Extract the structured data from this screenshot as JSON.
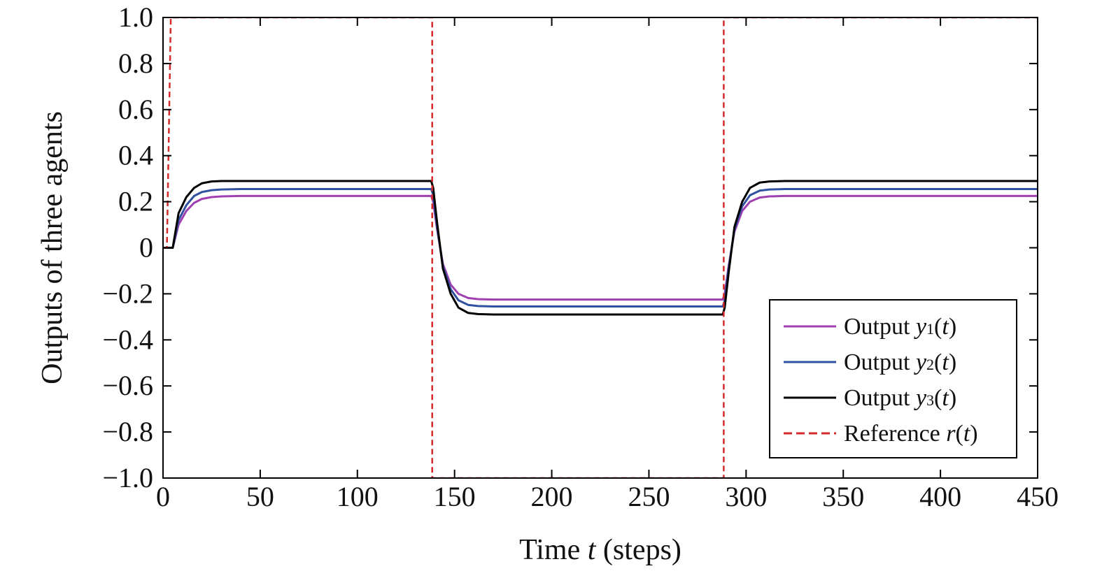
{
  "chart_data": {
    "type": "line",
    "xlabel_prefix": "Time ",
    "xlabel_var": "t",
    "xlabel_suffix": " (steps)",
    "ylabel": "Outputs of three agents",
    "xlim": [
      0,
      450
    ],
    "ylim": [
      -1.0,
      1.0
    ],
    "x_ticks": [
      0,
      50,
      100,
      150,
      200,
      250,
      300,
      350,
      400,
      450
    ],
    "x_tick_labels": [
      "0",
      "50",
      "100",
      "150",
      "200",
      "250",
      "300",
      "350",
      "400",
      "450"
    ],
    "y_ticks": [
      -1.0,
      -0.8,
      -0.6,
      -0.4,
      -0.2,
      0,
      0.2,
      0.4,
      0.6,
      0.8,
      1.0
    ],
    "y_tick_labels": [
      "−1.0",
      "−0.8",
      "−0.6",
      "−0.4",
      "−0.2",
      "0",
      "0.2",
      "0.4",
      "0.6",
      "0.8",
      "1.0"
    ],
    "grid": false,
    "legend_position": "bottom-right",
    "legend": [
      {
        "prefix": "Output ",
        "var": "y",
        "sub": "1",
        "arg": "(t)"
      },
      {
        "prefix": "Output ",
        "var": "y",
        "sub": "2",
        "arg": "(t)"
      },
      {
        "prefix": "Output ",
        "var": "y",
        "sub": "3",
        "arg": "(t)"
      },
      {
        "prefix": "Reference ",
        "var": "r",
        "sub": "",
        "arg": "(t)"
      }
    ],
    "series": [
      {
        "color": "#a040b0",
        "dashed": false,
        "x": [
          0,
          3,
          5,
          8,
          12,
          16,
          20,
          25,
          30,
          40,
          60,
          100,
          138,
          139,
          141,
          144,
          148,
          152,
          157,
          162,
          170,
          180,
          200,
          250,
          288,
          289,
          291,
          294,
          298,
          302,
          307,
          312,
          320,
          340,
          400,
          450
        ],
        "y": [
          0,
          0,
          0,
          0.1,
          0.16,
          0.195,
          0.212,
          0.22,
          0.223,
          0.225,
          0.225,
          0.225,
          0.225,
          0.2,
          0.08,
          -0.07,
          -0.16,
          -0.2,
          -0.218,
          -0.223,
          -0.225,
          -0.225,
          -0.225,
          -0.225,
          -0.225,
          -0.2,
          -0.08,
          0.07,
          0.16,
          0.2,
          0.218,
          0.223,
          0.225,
          0.225,
          0.225,
          0.225
        ]
      },
      {
        "color": "#3050a0",
        "dashed": false,
        "x": [
          0,
          3,
          5,
          8,
          12,
          16,
          20,
          25,
          30,
          40,
          60,
          100,
          138,
          139,
          141,
          144,
          148,
          152,
          157,
          162,
          170,
          180,
          200,
          250,
          288,
          289,
          291,
          294,
          298,
          302,
          307,
          312,
          320,
          340,
          400,
          450
        ],
        "y": [
          0,
          0,
          0,
          0.12,
          0.185,
          0.225,
          0.242,
          0.25,
          0.253,
          0.255,
          0.255,
          0.255,
          0.255,
          0.23,
          0.09,
          -0.08,
          -0.18,
          -0.228,
          -0.248,
          -0.253,
          -0.255,
          -0.255,
          -0.255,
          -0.255,
          -0.255,
          -0.23,
          -0.09,
          0.08,
          0.18,
          0.228,
          0.248,
          0.253,
          0.255,
          0.255,
          0.255,
          0.255
        ]
      },
      {
        "color": "#000000",
        "dashed": false,
        "x": [
          0,
          3,
          5,
          8,
          12,
          16,
          20,
          25,
          30,
          40,
          60,
          100,
          138,
          139,
          141,
          144,
          148,
          152,
          157,
          162,
          170,
          180,
          200,
          250,
          288,
          289,
          291,
          294,
          298,
          302,
          307,
          312,
          320,
          340,
          400,
          450
        ],
        "y": [
          0,
          0,
          0,
          0.15,
          0.22,
          0.26,
          0.28,
          0.288,
          0.29,
          0.29,
          0.29,
          0.29,
          0.29,
          0.26,
          0.11,
          -0.09,
          -0.2,
          -0.26,
          -0.283,
          -0.288,
          -0.29,
          -0.29,
          -0.29,
          -0.29,
          -0.29,
          -0.26,
          -0.11,
          0.09,
          0.2,
          0.26,
          0.283,
          0.288,
          0.29,
          0.29,
          0.29,
          0.29
        ]
      },
      {
        "color": "#d42a2a",
        "dashed": true,
        "x": [
          0,
          2,
          4,
          138,
          138.5,
          138.5,
          288,
          288.5,
          288.5,
          450
        ],
        "y": [
          0,
          0,
          1,
          1,
          1,
          -1,
          -1,
          -1,
          1,
          1
        ]
      }
    ]
  }
}
